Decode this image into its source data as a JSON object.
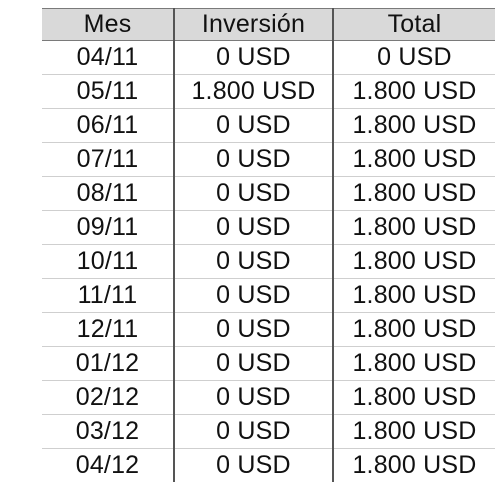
{
  "table": {
    "headers": [
      "Mes",
      "Inversión",
      "Total"
    ],
    "rows": [
      [
        "04/11",
        "0 USD",
        "0 USD"
      ],
      [
        "05/11",
        "1.800 USD",
        "1.800 USD"
      ],
      [
        "06/11",
        "0 USD",
        "1.800 USD"
      ],
      [
        "07/11",
        "0 USD",
        "1.800 USD"
      ],
      [
        "08/11",
        "0 USD",
        "1.800 USD"
      ],
      [
        "09/11",
        "0 USD",
        "1.800 USD"
      ],
      [
        "10/11",
        "0 USD",
        "1.800 USD"
      ],
      [
        "11/11",
        "0 USD",
        "1.800 USD"
      ],
      [
        "12/11",
        "0 USD",
        "1.800 USD"
      ],
      [
        "01/12",
        "0 USD",
        "1.800 USD"
      ],
      [
        "02/12",
        "0 USD",
        "1.800 USD"
      ],
      [
        "03/12",
        "0 USD",
        "1.800 USD"
      ],
      [
        "04/12",
        "0 USD",
        "1.800 USD"
      ]
    ]
  }
}
